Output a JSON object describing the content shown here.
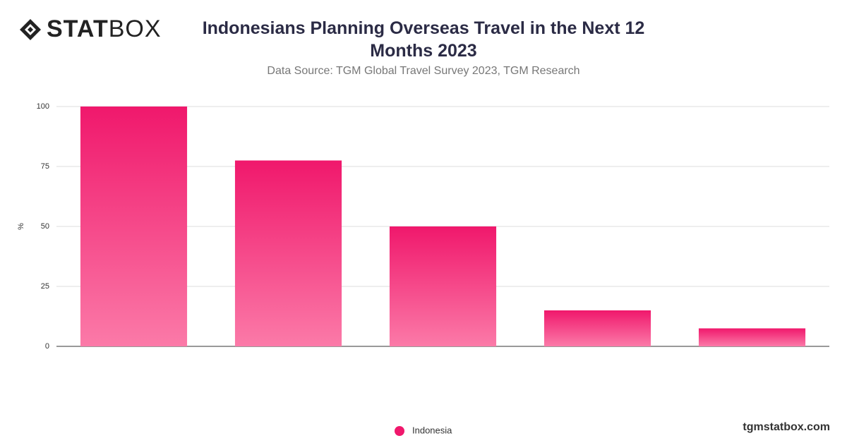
{
  "logo": {
    "bold": "STAT",
    "light": "BOX"
  },
  "footer": "tgmstatbox.com",
  "chart_data": {
    "type": "bar",
    "title": "Indonesians Planning Overseas Travel in the Next 12 Months 2023",
    "subtitle": "Data Source: TGM Global Travel Survey 2023, TGM Research",
    "y_label": "%",
    "categories": [
      null,
      null,
      null,
      null,
      null
    ],
    "series": [
      {
        "name": "Indonesia",
        "color": "#f0186c",
        "values": [
          100,
          77.5,
          50,
          15,
          7.5
        ]
      }
    ],
    "ylim": [
      0,
      100
    ],
    "yticks": [
      0,
      25,
      50,
      75,
      100
    ],
    "grid": true
  }
}
